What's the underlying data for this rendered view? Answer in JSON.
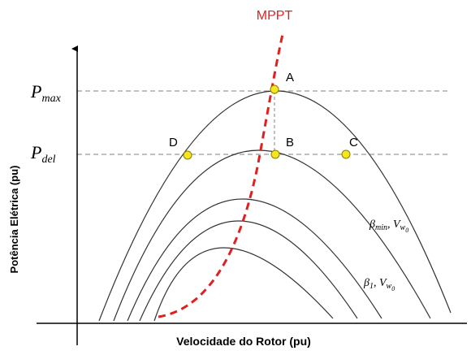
{
  "mppt_label": "MPPT",
  "y_levels": [
    {
      "base": "P",
      "sub": "max"
    },
    {
      "base": "P",
      "sub": "del"
    }
  ],
  "points": [
    "A",
    "B",
    "C",
    "D"
  ],
  "curve_labels": [
    {
      "beta": "β",
      "beta_sub": "min",
      "sep": ", ",
      "v": "V",
      "v_sub": "w",
      "v_subsub": "0"
    },
    {
      "beta": "β",
      "beta_sub": "1",
      "sep": ", ",
      "v": "V",
      "v_sub": "w",
      "v_subsub": "0"
    }
  ],
  "y_axis_label": "Potência Elétrica (pu)",
  "x_axis_label": "Velocidade do Rotor (pu)"
}
